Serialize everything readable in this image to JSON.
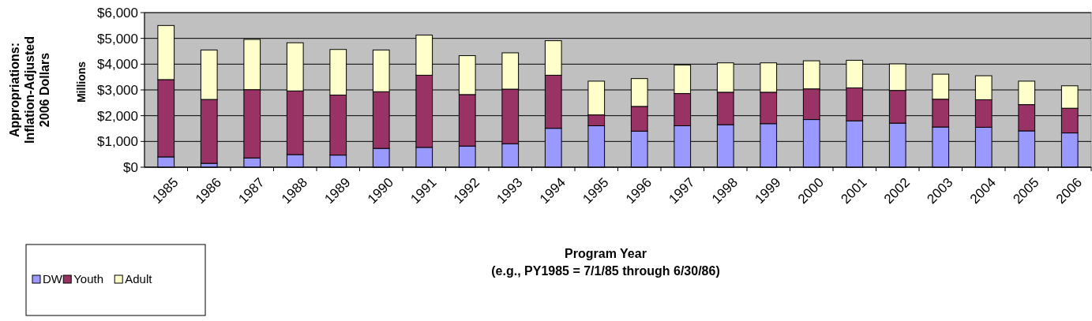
{
  "chart_data": {
    "type": "bar",
    "stacked": true,
    "ylabel": "Appropriations:\nInflation-Adjusted\n2006 Dollars",
    "xlabel": "Program Year\n(e.g., PY1985 = 7/1/85 through 6/30/86)",
    "annotations": [
      "Millions"
    ],
    "categories": [
      "1985",
      "1986",
      "1987",
      "1988",
      "1989",
      "1990",
      "1991",
      "1992",
      "1993",
      "1994",
      "1995",
      "1996",
      "1997",
      "1998",
      "1999",
      "2000",
      "2001",
      "2002",
      "2003",
      "2004",
      "2005",
      "2006"
    ],
    "series": [
      {
        "name": "DW",
        "color": "#9999ff",
        "values": [
          400,
          150,
          360,
          490,
          470,
          730,
          770,
          820,
          910,
          1510,
          1610,
          1400,
          1610,
          1650,
          1690,
          1850,
          1800,
          1710,
          1560,
          1550,
          1410,
          1330
        ]
      },
      {
        "name": "Youth",
        "color": "#993366",
        "values": [
          3000,
          2480,
          2650,
          2470,
          2330,
          2200,
          2800,
          2000,
          2120,
          2060,
          420,
          960,
          1250,
          1260,
          1220,
          1190,
          1280,
          1270,
          1080,
          1070,
          1020,
          960
        ]
      },
      {
        "name": "Adult",
        "color": "#ffffcc",
        "values": [
          2100,
          1920,
          1950,
          1870,
          1770,
          1620,
          1560,
          1510,
          1410,
          1340,
          1310,
          1080,
          1110,
          1140,
          1140,
          1090,
          1070,
          1030,
          970,
          930,
          910,
          870
        ]
      }
    ],
    "ylim": [
      0,
      6000
    ],
    "yticks": [
      {
        "value": 0,
        "label": "$0"
      },
      {
        "value": 1000,
        "label": "$1,000"
      },
      {
        "value": 2000,
        "label": "$2,000"
      },
      {
        "value": 3000,
        "label": "$3,000"
      },
      {
        "value": 4000,
        "label": "$4,000"
      },
      {
        "value": 5000,
        "label": "$5,000"
      },
      {
        "value": 6000,
        "label": "$6,000"
      }
    ],
    "grid": "y",
    "legend": "bottom left"
  }
}
